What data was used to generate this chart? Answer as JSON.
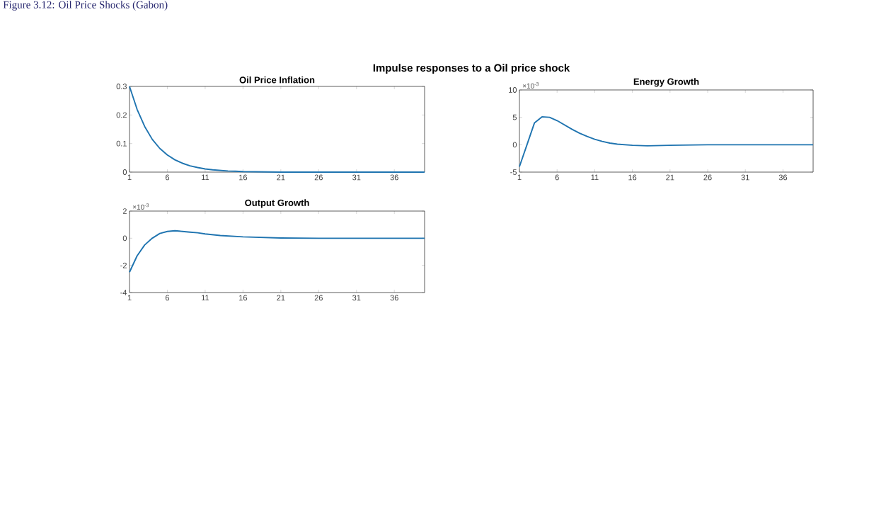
{
  "chart_data": [
    {
      "type": "line",
      "title": "Oil Price Inflation",
      "annotations": [
        "Figure 3.12: Oil Price Shocks (Gabon)",
        "Impulse responses to a Oil price shock"
      ],
      "x": [
        1,
        2,
        3,
        4,
        5,
        6,
        7,
        8,
        9,
        10,
        11,
        12,
        13,
        14,
        15,
        16,
        21,
        26,
        31,
        36,
        40
      ],
      "series": [
        {
          "color": "#1f74b0",
          "values": [
            0.3,
            0.22,
            0.16,
            0.115,
            0.083,
            0.06,
            0.043,
            0.031,
            0.022,
            0.016,
            0.011,
            0.008,
            0.006,
            0.004,
            0.003,
            0.002,
            0,
            0,
            0,
            0,
            0
          ]
        }
      ],
      "xlim": [
        1,
        40
      ],
      "xticks": [
        1,
        6,
        11,
        16,
        21,
        26,
        31,
        36
      ],
      "ylim": [
        0,
        0.3
      ],
      "yticks": [
        0,
        0.1,
        0.2,
        0.3
      ]
    },
    {
      "type": "line",
      "title": "Energy Growth",
      "annotations": [
        "×10$^{-3}$"
      ],
      "x": [
        1,
        2,
        3,
        4,
        5,
        6,
        7,
        8,
        9,
        10,
        11,
        12,
        13,
        14,
        15,
        16,
        18,
        21,
        26,
        31,
        36,
        40
      ],
      "series": [
        {
          "color": "#1f74b0",
          "values": [
            -4,
            0,
            4,
            5.1,
            5.0,
            4.4,
            3.6,
            2.8,
            2.1,
            1.5,
            1.0,
            0.6,
            0.3,
            0.1,
            0,
            -0.1,
            -0.2,
            -0.1,
            0,
            0,
            0,
            0
          ]
        }
      ],
      "xlim": [
        1,
        40
      ],
      "xticks": [
        1,
        6,
        11,
        16,
        21,
        26,
        31,
        36
      ],
      "ylim": [
        -5,
        10
      ],
      "yticks": [
        -5,
        0,
        5,
        10
      ]
    },
    {
      "type": "line",
      "title": "Output Growth",
      "annotations": [
        "×10$^{-3}$"
      ],
      "x": [
        1,
        2,
        3,
        4,
        5,
        6,
        7,
        8,
        9,
        10,
        11,
        13,
        16,
        21,
        26,
        31,
        36,
        40
      ],
      "series": [
        {
          "color": "#1f74b0",
          "values": [
            -2.5,
            -1.3,
            -0.5,
            0,
            0.35,
            0.5,
            0.55,
            0.5,
            0.45,
            0.4,
            0.32,
            0.2,
            0.1,
            0.02,
            0,
            0,
            0,
            0
          ]
        }
      ],
      "xlim": [
        1,
        40
      ],
      "xticks": [
        1,
        6,
        11,
        16,
        21,
        26,
        31,
        36
      ],
      "ylim": [
        -4,
        2
      ],
      "yticks": [
        -4,
        -2,
        0,
        2
      ]
    }
  ]
}
